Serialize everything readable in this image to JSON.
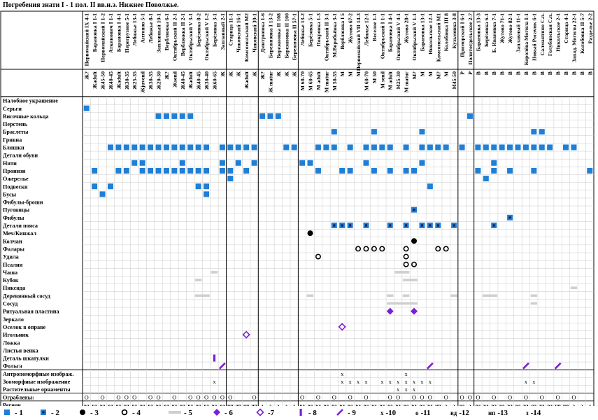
{
  "title": "Погребения знати I - 1 пол. II вв.н.э. Нижнее Поволжье.",
  "columns": [
    {
      "grave": "Первомайский IX 4-1",
      "sex": "Ж?",
      "region": "вд"
    },
    {
      "grave": "Барановка I 1-1",
      "sex": "Жadult",
      "region": "вд"
    },
    {
      "grave": "Первомайский I 1-2",
      "sex": "Ж45-50",
      "region": "вд"
    },
    {
      "grave": "Аткинович I 1-1",
      "sex": "Ж40-45",
      "region": "вд"
    },
    {
      "grave": "Барановка I 4-1",
      "sex": "Жadult",
      "region": "вд"
    },
    {
      "grave": "Перегрузное 5-1",
      "sex": "Ж30-35",
      "region": "вд"
    },
    {
      "grave": "Лебяжье 13-1",
      "sex": "Ж25-35",
      "region": "вд"
    },
    {
      "grave": "Антонов 5-1",
      "sex": "Жjuvenil",
      "region": "вд"
    },
    {
      "grave": "Лебяжье 8-1",
      "sex": "Ж30-35",
      "region": "вд"
    },
    {
      "grave": "Заплавный 10-1",
      "sex": "Ж20-30",
      "region": "вд"
    },
    {
      "grave": "Верблюжка 6-1",
      "sex": "Ж?",
      "region": "вд"
    },
    {
      "grave": "Октябрьский II 2-1",
      "sex": "Жsenil",
      "region": "вд"
    },
    {
      "grave": "Верблюжка II 2-1",
      "sex": "Ж40-45",
      "region": "вд"
    },
    {
      "grave": "Октябрьский V 3-1",
      "sex": "Жadult",
      "region": "вд"
    },
    {
      "grave": "Берёзовка 8-2",
      "sex": "Ж40-45",
      "region": "вд"
    },
    {
      "grave": "Октябрьский V 1-2",
      "sex": "Ж30-40",
      "region": "вд"
    },
    {
      "grave": "Берёзовка 3-1",
      "sex": "Ж60-65",
      "region": "вд"
    },
    {
      "grave": "Заплавный 2-1",
      "sex": "Ж",
      "region": "вд"
    },
    {
      "grave": "Старица 11-1",
      "sex": "Ж",
      "region": "нп"
    },
    {
      "grave": "Чиковский 16-1",
      "sex": "Ж",
      "region": "нп"
    },
    {
      "grave": "Комсомольский М2",
      "sex": "Жadult",
      "region": "нп"
    },
    {
      "grave": "Чиковский 39-1",
      "sex": "Ж",
      "region": "нп"
    },
    {
      "grave": "Дмитриевка 1-6",
      "sex": "Ж?",
      "region": "з"
    },
    {
      "grave": "Бережновка I 13-2",
      "sex": "Ж matur",
      "region": "з"
    },
    {
      "grave": "Бережновка II 108",
      "sex": "Ж",
      "region": "з"
    },
    {
      "grave": "Бережновка II 100",
      "sex": "Ж",
      "region": "з"
    },
    {
      "grave": "Бережновка II 57-1",
      "sex": "Ж",
      "region": "з"
    },
    {
      "grave": "Лебяжье 13-2",
      "sex": "М 60-70",
      "region": "вд"
    },
    {
      "grave": "Берёзовка 5-1",
      "sex": "М 60-65",
      "region": "вд"
    },
    {
      "grave": "Покровка 1-3",
      "sex": "М adult",
      "region": "вд"
    },
    {
      "grave": "Октябрьский II 3-1",
      "sex": "М matur",
      "region": "вд"
    },
    {
      "grave": "М.Воробьёвка 3-1",
      "sex": "М 50-55",
      "region": "вд"
    },
    {
      "grave": "Верблюжка I 5",
      "sex": "М",
      "region": "вд"
    },
    {
      "grave": "Жутово 67-2",
      "sex": "М",
      "region": "вд"
    },
    {
      "grave": "Первомайский VII 14-3",
      "sex": "М",
      "region": "вд"
    },
    {
      "grave": "Лебяжье 12-1",
      "sex": "М 60-70",
      "region": "вд"
    },
    {
      "grave": "Веселое 1-1",
      "sex": "М 50",
      "region": "вд"
    },
    {
      "grave": "Октябрьский I 1-1",
      "sex": "М senil",
      "region": "вд"
    },
    {
      "grave": "Барановка I 4-1",
      "sex": "М adult",
      "region": "вд"
    },
    {
      "grave": "Октябрьский V 4-1",
      "sex": "М25-30",
      "region": "вд"
    },
    {
      "grave": "Жутово 28-1",
      "sex": "М matur",
      "region": "вд"
    },
    {
      "grave": "Октябрьский V 1-1",
      "sex": "М?",
      "region": "вд"
    },
    {
      "grave": "Барановка 13-1",
      "sex": "М",
      "region": "вд"
    },
    {
      "grave": "Никольское 12-1",
      "sex": "М",
      "region": "вд"
    },
    {
      "grave": "Комсомольский М1",
      "sex": "М?",
      "region": "нп"
    },
    {
      "grave": "Колобовка III 8",
      "sex": "М",
      "region": "з"
    },
    {
      "grave": "Кузьмовка 3-8",
      "sex": "М45-50",
      "region": "з"
    },
    {
      "grave": "Приморский I 6-1",
      "sex": "Р",
      "region": "вд"
    },
    {
      "grave": "Политотдельское 2-7",
      "sex": "Р",
      "region": "з"
    },
    {
      "grave": "Барановка 13-3",
      "sex": "В",
      "region": "вд"
    },
    {
      "grave": "Берёзовка 6-1",
      "sex": "В",
      "region": "вд"
    },
    {
      "grave": "Б. Ивановка 7-1",
      "sex": "В",
      "region": "вд"
    },
    {
      "grave": "Жутово 71-1",
      "sex": "В",
      "region": "вд"
    },
    {
      "grave": "Жутово 82-1",
      "sex": "В",
      "region": "вд"
    },
    {
      "grave": "Заплавный 11-1",
      "sex": "В",
      "region": "вд"
    },
    {
      "grave": "Королёва Могила I-1",
      "sex": "В",
      "region": "вд"
    },
    {
      "grave": "Новый Рогачик 6-1",
      "sex": "В",
      "region": "вд"
    },
    {
      "grave": "Салмантино С.п.",
      "sex": "В",
      "region": "вд"
    },
    {
      "grave": "Голубинская С.п.",
      "sex": "В",
      "region": "вд"
    },
    {
      "grave": "Никольское 2-1",
      "sex": "В",
      "region": "нп"
    },
    {
      "grave": "Старица 4-1",
      "sex": "В",
      "region": "нп"
    },
    {
      "grave": "Запад. Могилы 22-1",
      "sex": "В",
      "region": "з"
    },
    {
      "grave": "Колобовка II 5-7",
      "sex": "В",
      "region": "з"
    },
    {
      "grave": "Разделье 2-2",
      "sex": "В",
      "region": "з"
    }
  ],
  "rows": [
    "Налобное украшение",
    "Серьги",
    "Височные кольца",
    "Перстень",
    "Браслеты",
    "Гривна",
    "Бляшки",
    "Детали обуви",
    "Нити",
    "Пронизи",
    "Ожерелье",
    "Подвески",
    "Бусы",
    "Фибулы-броши",
    "Пуговицы",
    "Фибулы",
    "Детали пояса",
    "Меч/Кинжал",
    "Колчан",
    "Фалары",
    "Удила",
    "Псалии",
    "Чаша",
    "Кубок",
    "Пиксида",
    "Деревянный сосуд",
    "Сосуд",
    "Ритуальная пластина",
    "Зеркало",
    "Оселок в оправе",
    "Игольник",
    "Ложка",
    "Листья венка",
    "Деталь шкатулки",
    "Фольга",
    "Антропоморфные изображ.",
    "Зооморфные изображение",
    "Растительные орнаменты",
    "Ограблены:",
    "Регион"
  ],
  "robbed_mark": "О",
  "cells": [
    [
      1,
      0,
      1
    ],
    [
      2,
      22,
      1
    ],
    [
      2,
      23,
      1
    ],
    [
      2,
      24,
      1
    ],
    [
      2,
      9,
      1
    ],
    [
      2,
      10,
      1
    ],
    [
      2,
      11,
      1
    ],
    [
      2,
      12,
      1
    ],
    [
      2,
      13,
      1
    ],
    [
      2,
      48,
      1
    ],
    [
      4,
      31,
      1
    ],
    [
      4,
      36,
      1
    ],
    [
      4,
      42,
      1
    ],
    [
      4,
      56,
      1
    ],
    [
      4,
      57,
      1
    ],
    [
      6,
      3,
      1
    ],
    [
      6,
      4,
      1
    ],
    [
      6,
      5,
      1
    ],
    [
      6,
      6,
      1
    ],
    [
      6,
      7,
      1
    ],
    [
      6,
      8,
      1
    ],
    [
      6,
      9,
      1
    ],
    [
      6,
      10,
      1
    ],
    [
      6,
      11,
      1
    ],
    [
      6,
      12,
      1
    ],
    [
      6,
      13,
      1
    ],
    [
      6,
      14,
      1
    ],
    [
      6,
      15,
      1
    ],
    [
      6,
      17,
      1
    ],
    [
      6,
      18,
      1
    ],
    [
      6,
      19,
      1
    ],
    [
      6,
      20,
      1
    ],
    [
      6,
      21,
      1
    ],
    [
      6,
      25,
      1
    ],
    [
      6,
      26,
      1
    ],
    [
      6,
      29,
      1
    ],
    [
      6,
      30,
      1
    ],
    [
      6,
      31,
      1
    ],
    [
      6,
      33,
      1
    ],
    [
      6,
      35,
      1
    ],
    [
      6,
      36,
      1
    ],
    [
      6,
      37,
      1
    ],
    [
      6,
      38,
      1
    ],
    [
      6,
      40,
      1
    ],
    [
      6,
      42,
      1
    ],
    [
      6,
      43,
      1
    ],
    [
      6,
      44,
      1
    ],
    [
      6,
      45,
      1
    ],
    [
      6,
      47,
      1
    ],
    [
      6,
      49,
      1
    ],
    [
      6,
      50,
      1
    ],
    [
      6,
      51,
      1
    ],
    [
      6,
      52,
      1
    ],
    [
      6,
      53,
      1
    ],
    [
      6,
      54,
      1
    ],
    [
      6,
      55,
      1
    ],
    [
      6,
      56,
      1
    ],
    [
      6,
      57,
      1
    ],
    [
      6,
      58,
      1
    ],
    [
      6,
      60,
      1
    ],
    [
      6,
      61,
      1
    ],
    [
      8,
      6,
      1
    ],
    [
      8,
      7,
      1
    ],
    [
      8,
      12,
      1
    ],
    [
      8,
      17,
      1
    ],
    [
      8,
      19,
      1
    ],
    [
      8,
      21,
      1
    ],
    [
      8,
      27,
      1
    ],
    [
      8,
      28,
      1
    ],
    [
      8,
      35,
      1
    ],
    [
      8,
      42,
      1
    ],
    [
      8,
      51,
      1
    ],
    [
      9,
      1,
      1
    ],
    [
      9,
      4,
      1
    ],
    [
      9,
      5,
      1
    ],
    [
      9,
      7,
      1
    ],
    [
      9,
      8,
      1
    ],
    [
      9,
      9,
      1
    ],
    [
      9,
      10,
      1
    ],
    [
      9,
      11,
      1
    ],
    [
      9,
      12,
      1
    ],
    [
      9,
      13,
      1
    ],
    [
      9,
      14,
      1
    ],
    [
      9,
      15,
      1
    ],
    [
      9,
      17,
      1
    ],
    [
      9,
      18,
      1
    ],
    [
      9,
      20,
      1
    ],
    [
      9,
      29,
      1
    ],
    [
      9,
      32,
      1
    ],
    [
      9,
      33,
      1
    ],
    [
      9,
      36,
      1
    ],
    [
      9,
      38,
      1
    ],
    [
      9,
      40,
      1
    ],
    [
      9,
      41,
      1
    ],
    [
      9,
      49,
      1
    ],
    [
      9,
      51,
      1
    ],
    [
      9,
      53,
      1
    ],
    [
      9,
      56,
      1
    ],
    [
      9,
      63,
      1
    ],
    [
      10,
      18,
      1
    ],
    [
      10,
      50,
      1
    ],
    [
      11,
      1,
      1
    ],
    [
      11,
      3,
      1
    ],
    [
      11,
      14,
      1
    ],
    [
      11,
      15,
      1
    ],
    [
      11,
      43,
      1
    ],
    [
      12,
      2,
      1
    ],
    [
      12,
      15,
      1
    ],
    [
      14,
      41,
      2
    ],
    [
      15,
      53,
      2
    ],
    [
      16,
      31,
      2
    ],
    [
      16,
      32,
      2
    ],
    [
      16,
      33,
      2
    ],
    [
      16,
      35,
      2
    ],
    [
      16,
      38,
      2
    ],
    [
      16,
      40,
      2
    ],
    [
      16,
      42,
      2
    ],
    [
      16,
      43,
      2
    ],
    [
      16,
      44,
      2
    ],
    [
      16,
      46,
      2
    ],
    [
      16,
      51,
      2
    ],
    [
      17,
      28,
      3
    ],
    [
      18,
      41,
      3
    ],
    [
      19,
      34,
      4
    ],
    [
      19,
      35,
      4
    ],
    [
      19,
      36,
      4
    ],
    [
      19,
      37,
      4
    ],
    [
      19,
      40,
      4
    ],
    [
      19,
      44,
      4
    ],
    [
      19,
      45,
      4
    ],
    [
      20,
      29,
      4
    ],
    [
      20,
      40,
      4
    ],
    [
      21,
      40,
      4
    ],
    [
      21,
      41,
      4
    ],
    [
      22,
      16,
      5,
      1
    ],
    [
      22,
      39,
      5,
      2
    ],
    [
      23,
      14,
      5,
      1
    ],
    [
      23,
      40,
      5,
      2
    ],
    [
      24,
      61,
      5,
      1
    ],
    [
      25,
      14,
      5,
      2
    ],
    [
      25,
      28,
      5,
      1
    ],
    [
      25,
      38,
      5,
      1
    ],
    [
      25,
      40,
      5,
      1
    ],
    [
      25,
      46,
      5,
      1
    ],
    [
      25,
      50,
      5,
      2
    ],
    [
      25,
      56,
      5,
      1
    ],
    [
      26,
      38,
      5,
      4
    ],
    [
      26,
      56,
      5,
      1
    ],
    [
      27,
      38,
      6
    ],
    [
      27,
      41,
      6
    ],
    [
      29,
      32,
      7
    ],
    [
      30,
      20,
      7
    ],
    [
      33,
      16,
      8
    ],
    [
      34,
      17,
      9
    ],
    [
      34,
      43,
      9
    ],
    [
      34,
      55,
      9
    ],
    [
      34,
      59,
      9
    ],
    [
      35,
      32,
      10
    ],
    [
      35,
      40,
      10
    ],
    [
      36,
      16,
      10
    ],
    [
      36,
      32,
      10
    ],
    [
      36,
      33,
      10
    ],
    [
      36,
      34,
      10
    ],
    [
      36,
      35,
      10
    ],
    [
      36,
      37,
      10
    ],
    [
      36,
      38,
      10
    ],
    [
      36,
      39,
      10
    ],
    [
      36,
      40,
      10
    ],
    [
      36,
      41,
      10
    ],
    [
      36,
      42,
      10
    ],
    [
      36,
      43,
      10
    ],
    [
      36,
      55,
      10
    ],
    [
      36,
      56,
      10
    ],
    [
      37,
      39,
      10
    ],
    [
      37,
      40,
      10
    ],
    [
      37,
      41,
      10
    ]
  ],
  "robbed": [
    0,
    2,
    4,
    5,
    6,
    8,
    9,
    11,
    13,
    14,
    15,
    16,
    17,
    18,
    21,
    27,
    29,
    31,
    33,
    35,
    38,
    39,
    41,
    42,
    43,
    45,
    47,
    48,
    49,
    51,
    53,
    55,
    57,
    59,
    61
  ],
  "legend": [
    {
      "symbol": "filled-square",
      "number": "- 1"
    },
    {
      "symbol": "square-with-dot",
      "number": "- 2"
    },
    {
      "symbol": "black-circle",
      "number": "- 3"
    },
    {
      "symbol": "ring",
      "number": "- 4"
    },
    {
      "symbol": "gray-bar",
      "number": "- 5"
    },
    {
      "symbol": "filled-diamond",
      "number": "- 6"
    },
    {
      "symbol": "open-diamond",
      "number": "-7"
    },
    {
      "symbol": "vertical-bar",
      "number": "- 8"
    },
    {
      "symbol": "slanted-bar",
      "number": "- 9"
    },
    {
      "symbol": "x",
      "text": "х",
      "number": "-10"
    },
    {
      "symbol": "small-ring",
      "text": "о",
      "number": "-11"
    },
    {
      "symbol": "region-text",
      "text": "вд",
      "number": "-12"
    },
    {
      "symbol": "region-text",
      "text": "нп",
      "number": "-13"
    },
    {
      "symbol": "region-text",
      "text": "з",
      "number": "-14"
    }
  ],
  "colors": {
    "blue": "#1f7fd6",
    "purple": "#7a1fd6",
    "gray": "#cfcfcf",
    "grid": "#c9c9c9",
    "ink": "#000000"
  }
}
